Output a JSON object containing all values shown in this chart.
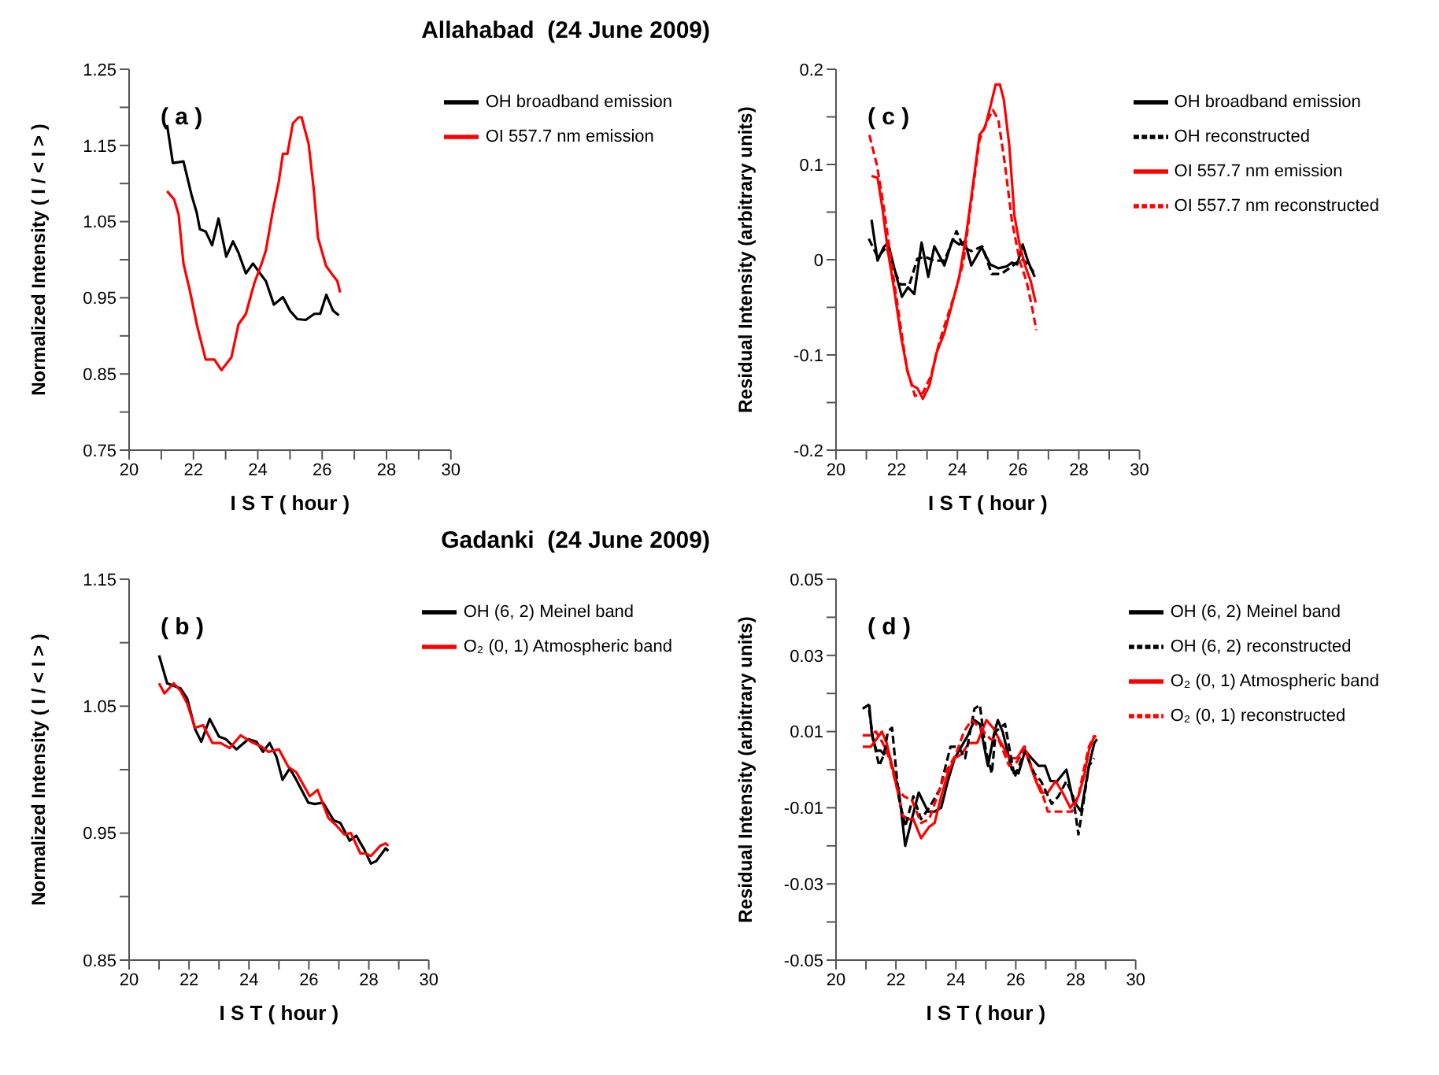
{
  "chart_data": [
    {
      "type": "line",
      "title": "Allahabad  (24 June 2009)",
      "xlabel": "I S T  ( hour )",
      "ylabel": "Normalized Intensity ( I / < I > )",
      "annotations": [
        "( a )"
      ],
      "legend": "top right",
      "grid": false,
      "marker": "none",
      "xlim": [
        20,
        30
      ],
      "xticks": [
        20,
        {
          "value": 21,
          "label": null
        },
        22,
        {
          "value": 23,
          "label": null
        },
        24,
        {
          "value": 25,
          "label": null
        },
        26,
        {
          "value": 27,
          "label": null
        },
        28,
        {
          "value": 29,
          "label": null
        },
        30
      ],
      "ylim": [
        0.75,
        1.25
      ],
      "yticks": [
        0.75,
        {
          "value": 0.8,
          "label": null
        },
        0.85,
        {
          "value": 0.9,
          "label": null
        },
        0.95,
        {
          "value": 1.0,
          "label": null
        },
        1.05,
        {
          "value": 1.1,
          "label": null
        },
        1.15,
        {
          "value": 1.2,
          "label": null
        },
        1.25
      ],
      "series": [
        {
          "name": "OH broadband emission",
          "color": "#000000",
          "line_style": "solid",
          "x": [
            21.18,
            21.36,
            21.69,
            21.94,
            22.1,
            22.2,
            22.38,
            22.58,
            22.78,
            23.02,
            23.23,
            23.4,
            23.63,
            23.85,
            24.07,
            24.25,
            24.5,
            24.78,
            25.0,
            25.23,
            25.49,
            25.76,
            25.94,
            26.13,
            26.34,
            26.52
          ],
          "values": [
            1.177,
            1.127,
            1.129,
            1.085,
            1.062,
            1.04,
            1.037,
            1.019,
            1.054,
            1.004,
            1.024,
            1.009,
            0.982,
            0.995,
            0.982,
            0.972,
            0.941,
            0.951,
            0.933,
            0.922,
            0.921,
            0.929,
            0.929,
            0.954,
            0.933,
            0.927
          ]
        },
        {
          "name": "OI 557.7 nm emission",
          "color": "#ff0000",
          "line_style": "solid",
          "x": [
            21.18,
            21.4,
            21.54,
            21.69,
            21.89,
            22.12,
            22.38,
            22.65,
            22.87,
            23.18,
            23.4,
            23.63,
            23.89,
            24.12,
            24.25,
            24.47,
            24.65,
            24.78,
            24.92,
            25.09,
            25.27,
            25.36,
            25.58,
            25.74,
            25.87,
            26.12,
            26.34,
            26.47,
            26.56
          ],
          "values": [
            1.09,
            1.079,
            1.059,
            0.995,
            0.959,
            0.912,
            0.869,
            0.869,
            0.855,
            0.872,
            0.915,
            0.929,
            0.969,
            0.995,
            1.012,
            1.065,
            1.102,
            1.139,
            1.139,
            1.179,
            1.187,
            1.187,
            1.152,
            1.092,
            1.029,
            0.992,
            0.979,
            0.972,
            0.957
          ]
        }
      ]
    },
    {
      "type": "line",
      "xlabel": "I S T  ( hour )",
      "ylabel": "Residual Intensity (arbitrary units)",
      "annotations": [
        "( c )"
      ],
      "legend": "top right",
      "grid": false,
      "marker": "none",
      "xlim": [
        20,
        30
      ],
      "xticks": [
        20,
        {
          "value": 21,
          "label": null
        },
        22,
        {
          "value": 23,
          "label": null
        },
        24,
        {
          "value": 25,
          "label": null
        },
        26,
        {
          "value": 27,
          "label": null
        },
        28,
        {
          "value": 29,
          "label": null
        },
        30
      ],
      "ylim": [
        -0.2,
        0.2
      ],
      "yticks": [
        -0.2,
        {
          "value": -0.15,
          "label": null
        },
        -0.1,
        {
          "value": -0.05,
          "label": null
        },
        0,
        {
          "value": 0.05,
          "label": null
        },
        0.1,
        {
          "value": 0.15,
          "label": null
        },
        0.2
      ],
      "series": [
        {
          "name": "OH broadband emission",
          "color": "#000000",
          "line_style": "solid",
          "x": [
            21.17,
            21.37,
            21.57,
            21.71,
            21.93,
            22.17,
            22.37,
            22.58,
            22.82,
            23.04,
            23.24,
            23.57,
            23.84,
            24.06,
            24.24,
            24.46,
            24.8,
            25.08,
            25.35,
            25.62,
            25.8,
            25.97,
            26.15,
            26.33,
            26.55
          ],
          "values": [
            0.042,
            -0.001,
            0.013,
            0.018,
            -0.01,
            -0.039,
            -0.029,
            -0.036,
            0.018,
            -0.018,
            0.014,
            -0.006,
            0.021,
            0.016,
            0.019,
            -0.006,
            0.013,
            -0.005,
            -0.009,
            -0.007,
            -0.003,
            -0.005,
            0.016,
            -0.002,
            -0.018
          ]
        },
        {
          "name": "OH reconstructed",
          "color": "#000000",
          "line_style": "dashed",
          "x": [
            21.08,
            21.37,
            21.66,
            21.88,
            22.11,
            22.42,
            22.68,
            22.95,
            23.22,
            23.57,
            23.97,
            24.2,
            24.46,
            24.82,
            25.13,
            25.44,
            25.8,
            26.11,
            26.33,
            26.51
          ],
          "values": [
            0.022,
            0.003,
            0.013,
            -0.007,
            -0.026,
            -0.026,
            0.001,
            0.003,
            -0.001,
            -0.001,
            0.03,
            0.013,
            0.009,
            0.014,
            -0.015,
            -0.015,
            -0.007,
            0.001,
            -0.005,
            -0.013
          ]
        },
        {
          "name": "OI 557.7 nm emission",
          "color": "#ff0000",
          "line_style": "solid",
          "x": [
            21.17,
            21.37,
            21.53,
            21.71,
            21.93,
            22.15,
            22.37,
            22.51,
            22.68,
            22.86,
            23.08,
            23.31,
            23.57,
            23.84,
            24.06,
            24.28,
            24.51,
            24.73,
            24.91,
            25.08,
            25.26,
            25.4,
            25.53,
            25.71,
            25.88,
            26.06,
            26.24,
            26.42,
            26.58
          ],
          "values": [
            0.088,
            0.086,
            0.054,
            0.009,
            -0.034,
            -0.082,
            -0.119,
            -0.132,
            -0.135,
            -0.146,
            -0.132,
            -0.098,
            -0.077,
            -0.045,
            -0.018,
            0.024,
            0.078,
            0.131,
            0.139,
            0.16,
            0.184,
            0.184,
            0.168,
            0.12,
            0.046,
            0.014,
            -0.007,
            -0.023,
            -0.045
          ]
        },
        {
          "name": "OI 557.7 nm reconstructed",
          "color": "#ff0000",
          "line_style": "dashed",
          "x": [
            21.1,
            21.35,
            21.57,
            21.8,
            22.06,
            22.33,
            22.6,
            22.86,
            23.13,
            23.4,
            23.66,
            23.93,
            24.2,
            24.46,
            24.73,
            25.0,
            25.17,
            25.35,
            25.57,
            25.8,
            26.06,
            26.28,
            26.46,
            26.6
          ],
          "values": [
            0.131,
            0.099,
            0.056,
            0.003,
            -0.055,
            -0.114,
            -0.143,
            -0.14,
            -0.122,
            -0.087,
            -0.061,
            -0.034,
            -0.002,
            0.062,
            0.126,
            0.147,
            0.157,
            0.147,
            0.099,
            0.04,
            -0.002,
            -0.023,
            -0.05,
            -0.074
          ]
        }
      ]
    },
    {
      "type": "line",
      "title": "Gadanki  (24 June 2009)",
      "xlabel": "I S T  ( hour )",
      "ylabel": "Normalized Intensity ( I / < I > )",
      "annotations": [
        "( b )"
      ],
      "legend": "top right",
      "grid": false,
      "marker": "none",
      "xlim": [
        20,
        30
      ],
      "xticks": [
        20,
        {
          "value": 21,
          "label": null
        },
        22,
        {
          "value": 23,
          "label": null
        },
        24,
        {
          "value": 25,
          "label": null
        },
        26,
        {
          "value": 27,
          "label": null
        },
        28,
        {
          "value": 29,
          "label": null
        },
        30
      ],
      "ylim": [
        0.85,
        1.15
      ],
      "yticks": [
        0.85,
        {
          "value": 0.9,
          "label": null
        },
        0.95,
        {
          "value": 1.0,
          "label": null
        },
        1.05,
        {
          "value": 1.1,
          "label": null
        },
        1.15
      ],
      "series": [
        {
          "name": "OH (6, 2) Meinel band",
          "color": "#000000",
          "line_style": "solid",
          "x": [
            21.0,
            21.27,
            21.49,
            21.72,
            21.94,
            22.2,
            22.41,
            22.69,
            23.0,
            23.23,
            23.58,
            23.98,
            24.25,
            24.47,
            24.69,
            24.92,
            25.12,
            25.36,
            25.58,
            25.98,
            26.2,
            26.47,
            26.83,
            27.05,
            27.36,
            27.58,
            27.85,
            28.07,
            28.25,
            28.56,
            28.65
          ],
          "values": [
            1.09,
            1.068,
            1.066,
            1.064,
            1.056,
            1.032,
            1.022,
            1.04,
            1.026,
            1.024,
            1.016,
            1.024,
            1.022,
            1.014,
            1.021,
            1.01,
            0.992,
            1.001,
            0.992,
            0.974,
            0.973,
            0.974,
            0.96,
            0.958,
            0.944,
            0.948,
            0.937,
            0.926,
            0.928,
            0.938,
            0.936
          ]
        },
        {
          "name": "O₂ (0, 1) Atmospheric band",
          "color": "#ff0000",
          "line_style": "solid",
          "x": [
            21.0,
            21.18,
            21.49,
            21.72,
            21.94,
            22.2,
            22.47,
            22.78,
            23.05,
            23.36,
            23.72,
            24.07,
            24.43,
            24.65,
            25.0,
            25.32,
            25.58,
            26.03,
            26.29,
            26.65,
            26.92,
            27.18,
            27.4,
            27.72,
            27.89,
            28.07,
            28.38,
            28.56,
            28.65
          ],
          "values": [
            1.068,
            1.06,
            1.068,
            1.062,
            1.052,
            1.033,
            1.035,
            1.021,
            1.021,
            1.017,
            1.027,
            1.022,
            1.018,
            1.014,
            1.016,
            1.002,
            0.998,
            0.979,
            0.984,
            0.962,
            0.956,
            0.949,
            0.95,
            0.934,
            0.934,
            0.932,
            0.94,
            0.942,
            0.94
          ]
        }
      ]
    },
    {
      "type": "line",
      "xlabel": "I S T  ( hour )",
      "ylabel": "Residual Intensity (arbitrary units)",
      "annotations": [
        "( d )"
      ],
      "legend": "top right",
      "grid": false,
      "marker": "none",
      "xlim": [
        20,
        30
      ],
      "xticks": [
        20,
        {
          "value": 21,
          "label": null
        },
        22,
        {
          "value": 23,
          "label": null
        },
        24,
        {
          "value": 25,
          "label": null
        },
        26,
        {
          "value": 27,
          "label": null
        },
        28,
        {
          "value": 29,
          "label": null
        },
        30
      ],
      "ylim": [
        -0.05,
        0.05
      ],
      "yticks": [
        -0.05,
        {
          "value": -0.04,
          "label": null
        },
        -0.03,
        {
          "value": -0.02,
          "label": null
        },
        -0.01,
        {
          "value": 0,
          "label": null
        },
        0.01,
        {
          "value": 0.02,
          "label": null
        },
        0.03,
        {
          "value": 0.04,
          "label": null
        },
        0.05
      ],
      "series": [
        {
          "name": "OH (6, 2) Meinel band",
          "color": "#000000",
          "line_style": "solid",
          "x": [
            21.11,
            21.2,
            21.35,
            21.49,
            21.6,
            21.69,
            21.87,
            22.09,
            22.31,
            22.53,
            22.76,
            23.07,
            23.29,
            23.51,
            23.73,
            23.96,
            24.18,
            24.4,
            24.62,
            24.8,
            25.07,
            25.29,
            25.4,
            25.56,
            25.87,
            26.09,
            26.31,
            26.53,
            26.76,
            26.98,
            27.16,
            27.38,
            27.69,
            27.91,
            28.18,
            28.44,
            28.62,
            28.71
          ],
          "values": [
            0.017,
            0.009,
            0.005,
            0.005,
            0.004,
            0.006,
            0.001,
            -0.005,
            -0.02,
            -0.013,
            -0.006,
            -0.011,
            -0.011,
            -0.01,
            -0.003,
            0.003,
            0.006,
            0.009,
            0.013,
            0.012,
            0.001,
            0.01,
            0.013,
            0.01,
            0.0,
            -0.001,
            0.005,
            0.003,
            0.001,
            0.001,
            -0.003,
            -0.003,
            0.0,
            -0.008,
            -0.011,
            0.001,
            0.007,
            0.008
          ]
        },
        {
          "name": "O₂ (0, 1) Atmospheric band",
          "color": "#ff0000",
          "line_style": "solid",
          "x": [
            20.89,
            21.16,
            21.35,
            21.53,
            21.69,
            21.87,
            22.04,
            22.22,
            22.4,
            22.58,
            22.84,
            23.11,
            23.29,
            23.51,
            23.73,
            23.96,
            24.18,
            24.44,
            24.71,
            25.02,
            25.24,
            25.51,
            25.78,
            26.04,
            26.27,
            26.49,
            26.67,
            26.84,
            27.07,
            27.33,
            27.56,
            27.82,
            28.09,
            28.27,
            28.44,
            28.58,
            28.67
          ],
          "values": [
            0.006,
            0.006,
            0.008,
            0.01,
            0.007,
            0.001,
            -0.005,
            -0.012,
            -0.013,
            -0.013,
            -0.018,
            -0.015,
            -0.014,
            -0.007,
            -0.001,
            0.003,
            0.004,
            0.007,
            0.007,
            0.013,
            0.011,
            0.007,
            0.003,
            0.003,
            0.006,
            0.001,
            -0.003,
            -0.006,
            -0.006,
            -0.003,
            -0.006,
            -0.01,
            -0.007,
            -0.002,
            0.005,
            0.008,
            0.009
          ]
        },
        {
          "name": "OH (6, 2) reconstructed",
          "color": "#000000",
          "line_style": "dashed",
          "x": [
            20.89,
            21.08,
            21.24,
            21.44,
            21.6,
            21.73,
            21.87,
            22.09,
            22.31,
            22.58,
            22.84,
            23.11,
            23.47,
            23.82,
            24.09,
            24.31,
            24.62,
            24.8,
            25.0,
            25.2,
            25.33,
            25.64,
            25.96,
            26.31,
            26.62,
            26.84,
            27.2,
            27.42,
            27.69,
            27.91,
            28.09,
            28.27,
            28.44,
            28.62
          ],
          "values": [
            0.016,
            0.017,
            0.008,
            0.001,
            0.004,
            0.01,
            0.011,
            -0.007,
            -0.015,
            -0.007,
            -0.013,
            -0.01,
            -0.005,
            0.006,
            0.006,
            0.003,
            0.016,
            0.017,
            0.005,
            -0.001,
            0.01,
            0.012,
            -0.002,
            0.005,
            -0.001,
            -0.003,
            -0.009,
            -0.007,
            -0.003,
            -0.007,
            -0.017,
            -0.008,
            0.001,
            0.003
          ]
        },
        {
          "name": "O₂ (0, 1) reconstructed",
          "color": "#ff0000",
          "line_style": "dashed",
          "x": [
            20.89,
            21.11,
            21.33,
            21.56,
            21.78,
            22.04,
            22.27,
            22.53,
            22.84,
            23.11,
            23.38,
            23.64,
            24.0,
            24.27,
            24.53,
            24.8,
            25.16,
            25.42,
            25.78,
            26.04,
            26.31,
            26.58,
            26.84,
            27.07,
            27.38,
            27.64,
            27.87,
            28.09,
            28.27,
            28.44,
            28.62
          ],
          "values": [
            0.009,
            0.009,
            0.01,
            0.007,
            0.003,
            -0.005,
            -0.007,
            -0.008,
            -0.014,
            -0.013,
            -0.007,
            -0.001,
            0.004,
            0.01,
            0.013,
            0.011,
            0.008,
            0.008,
            0.001,
            0.002,
            0.006,
            -0.001,
            -0.005,
            -0.011,
            -0.011,
            -0.011,
            -0.011,
            -0.007,
            0.0,
            0.006,
            0.009
          ]
        }
      ]
    }
  ]
}
